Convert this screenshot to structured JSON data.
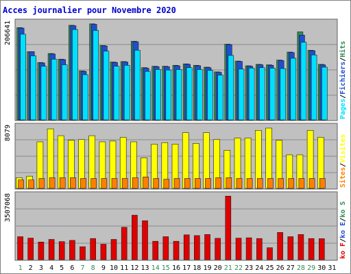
{
  "chart_data": {
    "type": "bar",
    "title": "Acces journalier pour Novembre 2020",
    "categories": [
      "1",
      "2",
      "3",
      "4",
      "5",
      "6",
      "7",
      "8",
      "9",
      "10",
      "11",
      "12",
      "13",
      "14",
      "15",
      "16",
      "17",
      "18",
      "19",
      "20",
      "21",
      "22",
      "23",
      "24",
      "25",
      "26",
      "27",
      "28",
      "29",
      "30",
      "31"
    ],
    "weekend_days": [
      "1",
      "7",
      "8",
      "14",
      "15",
      "21",
      "22",
      "28",
      "29"
    ],
    "panels": [
      {
        "id": "hits",
        "ymax_label": "206641",
        "ymax": 206641,
        "legend": [
          {
            "text": "Pages",
            "color": "#00e0ff"
          },
          {
            "text": "/",
            "color": "#000000"
          },
          {
            "text": "Fichiers",
            "color": "#1f4fd0"
          },
          {
            "text": "/",
            "color": "#000000"
          },
          {
            "text": "Hits",
            "color": "#2e8b57"
          }
        ],
        "series": [
          {
            "name": "Hits",
            "color": "#2e8b57",
            "values": [
              196000,
              145000,
              122000,
              141000,
              129000,
              201000,
              104000,
              204000,
              158000,
              123000,
              124000,
              167000,
              111000,
              114000,
              114000,
              116000,
              119000,
              116000,
              112000,
              102000,
              161000,
              125000,
              115000,
              118000,
              117000,
              127000,
              144000,
              187000,
              148000,
              118000,
              0
            ]
          },
          {
            "name": "Fichiers",
            "color": "#1f4fd0",
            "values": [
              195000,
              145000,
              121000,
              140000,
              128000,
              200000,
              103000,
              203000,
              157000,
              122000,
              123000,
              166000,
              110000,
              113000,
              113000,
              115000,
              118000,
              115000,
              111000,
              101000,
              160000,
              124000,
              114000,
              117000,
              116000,
              126000,
              143000,
              180000,
              147000,
              117000,
              0
            ]
          },
          {
            "name": "Pages",
            "color": "#00e0ff",
            "values": [
              182000,
              136000,
              114000,
              129000,
              117000,
              192000,
              96000,
              190000,
              146000,
              114000,
              116000,
              148000,
              103000,
              107000,
              106000,
              107000,
              111000,
              107000,
              105000,
              95000,
              137000,
              108000,
              110000,
              111000,
              110000,
              109000,
              131000,
              165000,
              138000,
              112000,
              0
            ]
          }
        ]
      },
      {
        "id": "visits",
        "ymax_label": "8079",
        "ymax": 8079,
        "legend": [
          {
            "text": "Sites",
            "color": "#ff8000"
          },
          {
            "text": "/",
            "color": "#000000"
          },
          {
            "text": "Visites",
            "color": "#ffff00"
          }
        ],
        "series": [
          {
            "name": "Visites",
            "color": "#ffff00",
            "values": [
              1400,
              1600,
              6100,
              7800,
              6900,
              6300,
              6400,
              6900,
              6100,
              6200,
              6700,
              6100,
              4000,
              5800,
              6000,
              5800,
              7300,
              5900,
              7300,
              6400,
              5000,
              6600,
              6600,
              7600,
              7900,
              6300,
              4400,
              4400,
              7600,
              6700,
              0
            ]
          },
          {
            "name": "Sites",
            "color": "#ff8000",
            "values": [
              1100,
              1100,
              1300,
              1400,
              1400,
              1400,
              1300,
              1300,
              1300,
              1300,
              1300,
              1400,
              1500,
              1300,
              1200,
              1300,
              1300,
              1300,
              1300,
              1400,
              1400,
              1300,
              1300,
              1300,
              1300,
              1300,
              1300,
              1300,
              1300,
              1300,
              0
            ]
          }
        ]
      },
      {
        "id": "bandwidth",
        "ymax_label": "3507068",
        "ymax": 3507068,
        "legend": [
          {
            "text": "ko F",
            "color": "#e00000"
          },
          {
            "text": "/",
            "color": "#000000"
          },
          {
            "text": "ko E",
            "color": "#1f4fd0"
          },
          {
            "text": "/",
            "color": "#000000"
          },
          {
            "text": "ko S",
            "color": "#2e8b57"
          }
        ],
        "series": [
          {
            "name": "ko F",
            "color": "#e00000",
            "values": [
              1250000,
              1170000,
              960000,
              1100000,
              980000,
              1050000,
              700000,
              1150000,
              840000,
              1100000,
              1760000,
              2420000,
              2120000,
              1000000,
              1250000,
              1000000,
              1350000,
              1310000,
              1370000,
              1160000,
              3460000,
              1170000,
              1190000,
              1150000,
              650000,
              1480000,
              1250000,
              1370000,
              1150000,
              1140000,
              0
            ]
          }
        ]
      }
    ]
  }
}
